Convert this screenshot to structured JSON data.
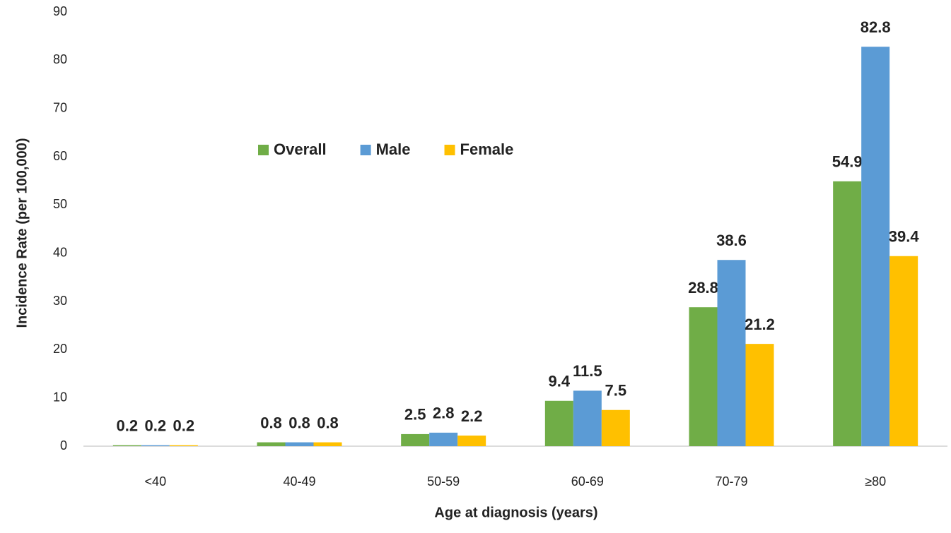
{
  "chart_data": {
    "type": "bar",
    "x_label": "Age at diagnosis (years)",
    "y_label": "Incidence Rate (per 100,000)",
    "categories": [
      "<40",
      "40-49",
      "50-59",
      "60-69",
      "70-79",
      "≥80"
    ],
    "series": [
      {
        "name": "Overall",
        "color": "#70ad47",
        "values": [
          0.2,
          0.8,
          2.5,
          9.4,
          28.8,
          54.9
        ]
      },
      {
        "name": "Male",
        "color": "#5b9bd5",
        "values": [
          0.2,
          0.8,
          2.8,
          11.5,
          38.6,
          82.8
        ]
      },
      {
        "name": "Female",
        "color": "#ffc000",
        "values": [
          0.2,
          0.8,
          2.2,
          7.5,
          21.2,
          39.4
        ]
      }
    ],
    "ylim": [
      0,
      90
    ],
    "yticks": [
      0,
      10,
      20,
      30,
      40,
      50,
      60,
      70,
      80,
      90
    ],
    "grid": false
  }
}
